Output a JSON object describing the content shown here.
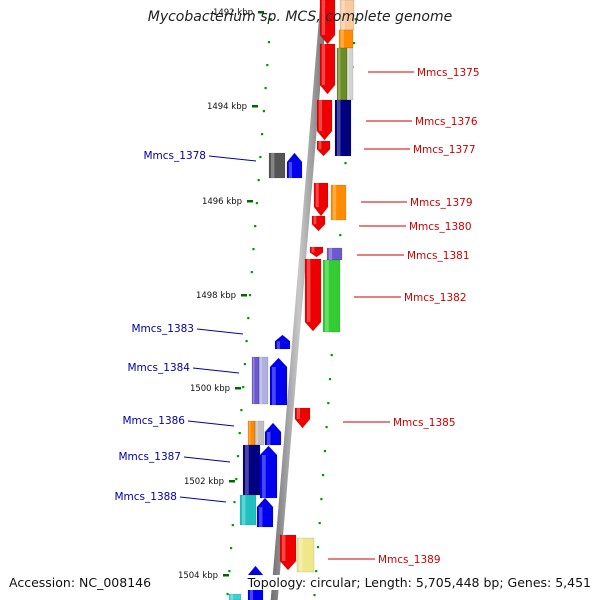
{
  "header": {
    "title": "Mycobacterium sp. MCS, complete genome"
  },
  "footer": {
    "accession": "Accession: NC_008146",
    "topology": "Topology: circular",
    "length": "Length: 5,705,448 bp",
    "genes": "Genes: 5,451",
    "separator": "; "
  },
  "colors": {
    "forward_label": "#cc0000",
    "reverse_label": "#0000aa",
    "scale_tick": "#006600",
    "track_dots": "#009900",
    "backbone": "#8a8a8a"
  },
  "scale_labels": [
    {
      "kbp": 1492,
      "text": "1492 kbp",
      "faded": true
    },
    {
      "kbp": 1494,
      "text": "1494 kbp"
    },
    {
      "kbp": 1496,
      "text": "1496 kbp"
    },
    {
      "kbp": 1498,
      "text": "1498 kbp"
    },
    {
      "kbp": 1500,
      "text": "1500 kbp"
    },
    {
      "kbp": 1502,
      "text": "1502 kbp"
    },
    {
      "kbp": 1504,
      "text": "1504 kbp"
    }
  ],
  "forward_genes": [
    {
      "name": "Mmcs_1375",
      "color": "red"
    },
    {
      "name": "Mmcs_1376",
      "color": "red"
    },
    {
      "name": "Mmcs_1377",
      "color": "red"
    },
    {
      "name": "Mmcs_1379",
      "color": "red"
    },
    {
      "name": "Mmcs_1380",
      "color": "red"
    },
    {
      "name": "Mmcs_1381",
      "color": "red"
    },
    {
      "name": "Mmcs_1382",
      "color": "red"
    },
    {
      "name": "Mmcs_1385",
      "color": "red"
    },
    {
      "name": "Mmcs_1389",
      "color": "red"
    }
  ],
  "reverse_genes": [
    {
      "name": "Mmcs_1378",
      "color": "blue"
    },
    {
      "name": "Mmcs_1383",
      "color": "blue"
    },
    {
      "name": "Mmcs_1384",
      "color": "blue"
    },
    {
      "name": "Mmcs_1386",
      "color": "blue"
    },
    {
      "name": "Mmcs_1387",
      "color": "blue"
    },
    {
      "name": "Mmcs_1388",
      "color": "blue"
    }
  ]
}
